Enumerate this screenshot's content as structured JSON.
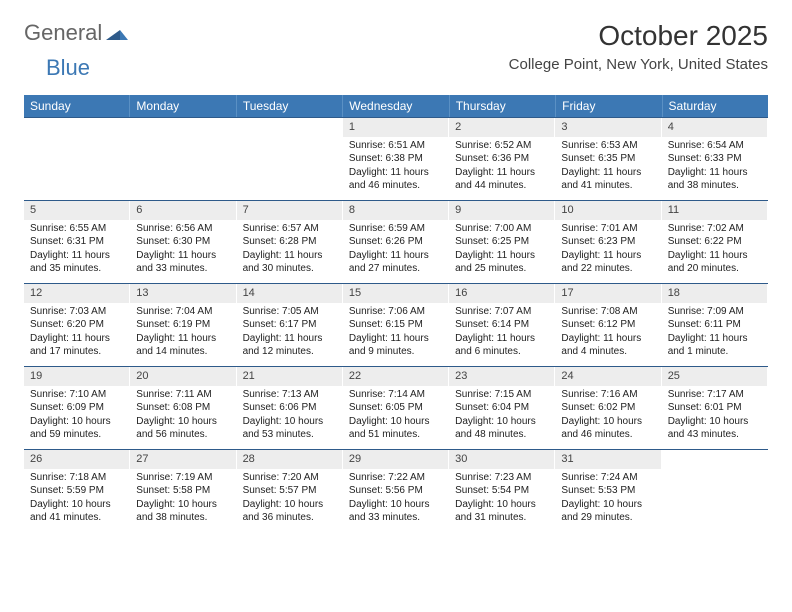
{
  "logo": {
    "text1": "General",
    "text2": "Blue"
  },
  "title": "October 2025",
  "location": "College Point, New York, United States",
  "colors": {
    "header_bg": "#3c78b4",
    "header_text": "#ffffff",
    "daynum_bg": "#ededed",
    "border": "#2e5a8a",
    "body_text": "#222222"
  },
  "day_names": [
    "Sunday",
    "Monday",
    "Tuesday",
    "Wednesday",
    "Thursday",
    "Friday",
    "Saturday"
  ],
  "weeks": [
    [
      {
        "n": "",
        "sr": "",
        "ss": "",
        "dl": ""
      },
      {
        "n": "",
        "sr": "",
        "ss": "",
        "dl": ""
      },
      {
        "n": "",
        "sr": "",
        "ss": "",
        "dl": ""
      },
      {
        "n": "1",
        "sr": "Sunrise: 6:51 AM",
        "ss": "Sunset: 6:38 PM",
        "dl": "Daylight: 11 hours and 46 minutes."
      },
      {
        "n": "2",
        "sr": "Sunrise: 6:52 AM",
        "ss": "Sunset: 6:36 PM",
        "dl": "Daylight: 11 hours and 44 minutes."
      },
      {
        "n": "3",
        "sr": "Sunrise: 6:53 AM",
        "ss": "Sunset: 6:35 PM",
        "dl": "Daylight: 11 hours and 41 minutes."
      },
      {
        "n": "4",
        "sr": "Sunrise: 6:54 AM",
        "ss": "Sunset: 6:33 PM",
        "dl": "Daylight: 11 hours and 38 minutes."
      }
    ],
    [
      {
        "n": "5",
        "sr": "Sunrise: 6:55 AM",
        "ss": "Sunset: 6:31 PM",
        "dl": "Daylight: 11 hours and 35 minutes."
      },
      {
        "n": "6",
        "sr": "Sunrise: 6:56 AM",
        "ss": "Sunset: 6:30 PM",
        "dl": "Daylight: 11 hours and 33 minutes."
      },
      {
        "n": "7",
        "sr": "Sunrise: 6:57 AM",
        "ss": "Sunset: 6:28 PM",
        "dl": "Daylight: 11 hours and 30 minutes."
      },
      {
        "n": "8",
        "sr": "Sunrise: 6:59 AM",
        "ss": "Sunset: 6:26 PM",
        "dl": "Daylight: 11 hours and 27 minutes."
      },
      {
        "n": "9",
        "sr": "Sunrise: 7:00 AM",
        "ss": "Sunset: 6:25 PM",
        "dl": "Daylight: 11 hours and 25 minutes."
      },
      {
        "n": "10",
        "sr": "Sunrise: 7:01 AM",
        "ss": "Sunset: 6:23 PM",
        "dl": "Daylight: 11 hours and 22 minutes."
      },
      {
        "n": "11",
        "sr": "Sunrise: 7:02 AM",
        "ss": "Sunset: 6:22 PM",
        "dl": "Daylight: 11 hours and 20 minutes."
      }
    ],
    [
      {
        "n": "12",
        "sr": "Sunrise: 7:03 AM",
        "ss": "Sunset: 6:20 PM",
        "dl": "Daylight: 11 hours and 17 minutes."
      },
      {
        "n": "13",
        "sr": "Sunrise: 7:04 AM",
        "ss": "Sunset: 6:19 PM",
        "dl": "Daylight: 11 hours and 14 minutes."
      },
      {
        "n": "14",
        "sr": "Sunrise: 7:05 AM",
        "ss": "Sunset: 6:17 PM",
        "dl": "Daylight: 11 hours and 12 minutes."
      },
      {
        "n": "15",
        "sr": "Sunrise: 7:06 AM",
        "ss": "Sunset: 6:15 PM",
        "dl": "Daylight: 11 hours and 9 minutes."
      },
      {
        "n": "16",
        "sr": "Sunrise: 7:07 AM",
        "ss": "Sunset: 6:14 PM",
        "dl": "Daylight: 11 hours and 6 minutes."
      },
      {
        "n": "17",
        "sr": "Sunrise: 7:08 AM",
        "ss": "Sunset: 6:12 PM",
        "dl": "Daylight: 11 hours and 4 minutes."
      },
      {
        "n": "18",
        "sr": "Sunrise: 7:09 AM",
        "ss": "Sunset: 6:11 PM",
        "dl": "Daylight: 11 hours and 1 minute."
      }
    ],
    [
      {
        "n": "19",
        "sr": "Sunrise: 7:10 AM",
        "ss": "Sunset: 6:09 PM",
        "dl": "Daylight: 10 hours and 59 minutes."
      },
      {
        "n": "20",
        "sr": "Sunrise: 7:11 AM",
        "ss": "Sunset: 6:08 PM",
        "dl": "Daylight: 10 hours and 56 minutes."
      },
      {
        "n": "21",
        "sr": "Sunrise: 7:13 AM",
        "ss": "Sunset: 6:06 PM",
        "dl": "Daylight: 10 hours and 53 minutes."
      },
      {
        "n": "22",
        "sr": "Sunrise: 7:14 AM",
        "ss": "Sunset: 6:05 PM",
        "dl": "Daylight: 10 hours and 51 minutes."
      },
      {
        "n": "23",
        "sr": "Sunrise: 7:15 AM",
        "ss": "Sunset: 6:04 PM",
        "dl": "Daylight: 10 hours and 48 minutes."
      },
      {
        "n": "24",
        "sr": "Sunrise: 7:16 AM",
        "ss": "Sunset: 6:02 PM",
        "dl": "Daylight: 10 hours and 46 minutes."
      },
      {
        "n": "25",
        "sr": "Sunrise: 7:17 AM",
        "ss": "Sunset: 6:01 PM",
        "dl": "Daylight: 10 hours and 43 minutes."
      }
    ],
    [
      {
        "n": "26",
        "sr": "Sunrise: 7:18 AM",
        "ss": "Sunset: 5:59 PM",
        "dl": "Daylight: 10 hours and 41 minutes."
      },
      {
        "n": "27",
        "sr": "Sunrise: 7:19 AM",
        "ss": "Sunset: 5:58 PM",
        "dl": "Daylight: 10 hours and 38 minutes."
      },
      {
        "n": "28",
        "sr": "Sunrise: 7:20 AM",
        "ss": "Sunset: 5:57 PM",
        "dl": "Daylight: 10 hours and 36 minutes."
      },
      {
        "n": "29",
        "sr": "Sunrise: 7:22 AM",
        "ss": "Sunset: 5:56 PM",
        "dl": "Daylight: 10 hours and 33 minutes."
      },
      {
        "n": "30",
        "sr": "Sunrise: 7:23 AM",
        "ss": "Sunset: 5:54 PM",
        "dl": "Daylight: 10 hours and 31 minutes."
      },
      {
        "n": "31",
        "sr": "Sunrise: 7:24 AM",
        "ss": "Sunset: 5:53 PM",
        "dl": "Daylight: 10 hours and 29 minutes."
      },
      {
        "n": "",
        "sr": "",
        "ss": "",
        "dl": ""
      }
    ]
  ]
}
